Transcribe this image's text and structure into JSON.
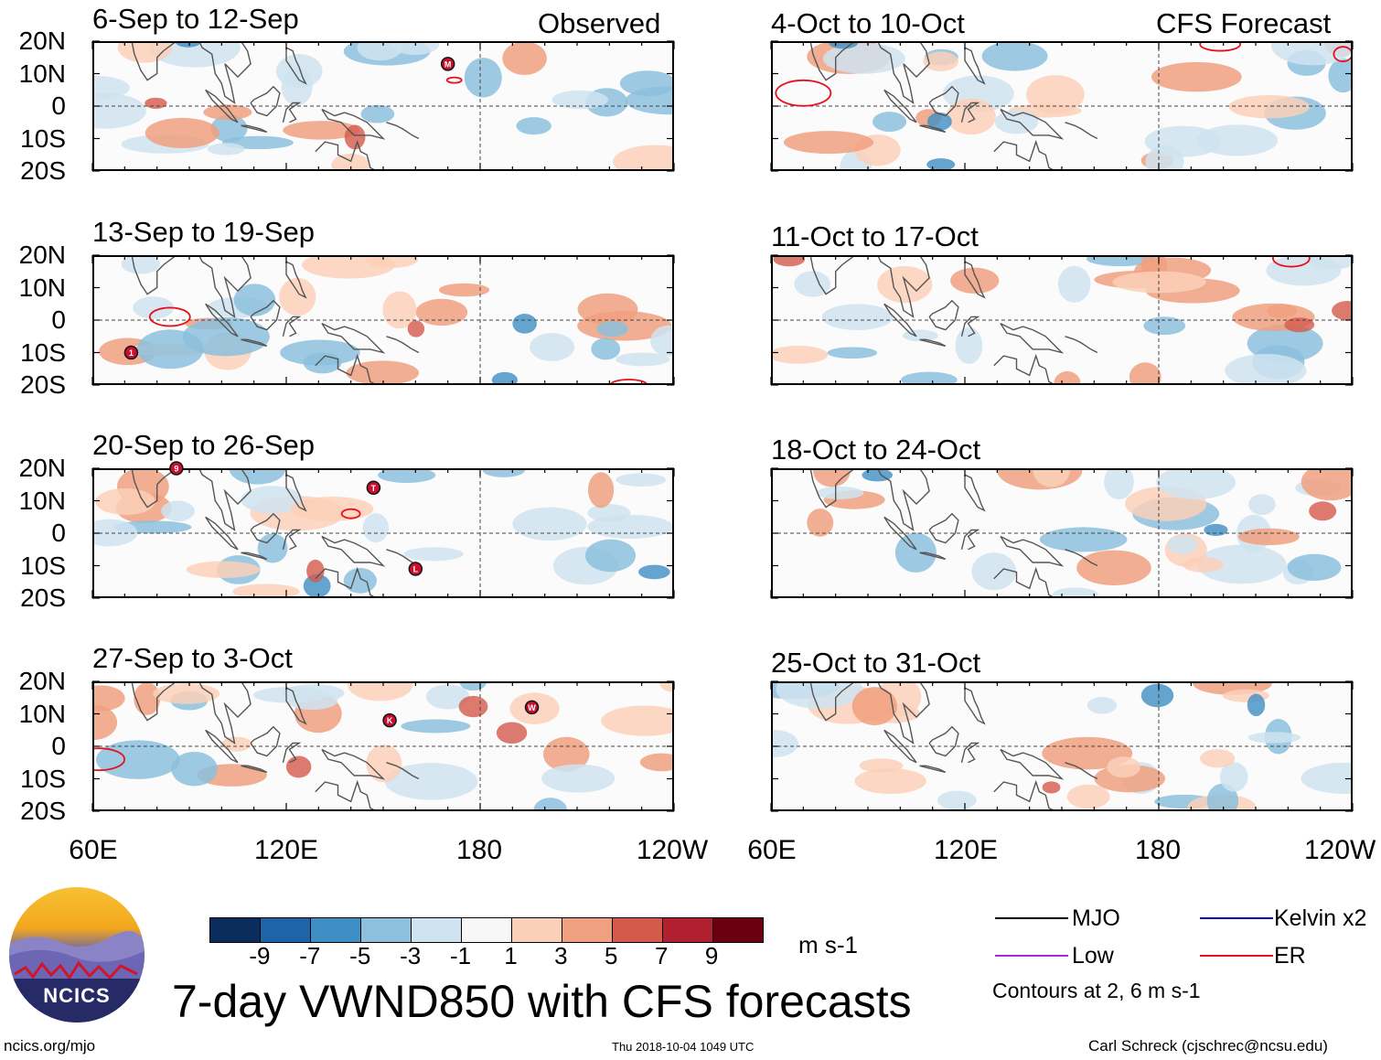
{
  "chart_data": {
    "type": "heatmap",
    "title": "7-day VWND850 with CFS forecasts",
    "units": "m s-1",
    "left_header": "Observed",
    "right_header": "CFS Forecast",
    "panels_observed": [
      {
        "period": "6-Sep to 12-Sep",
        "storms": [
          {
            "symbol": "M",
            "lon": 170,
            "lat": 13
          }
        ]
      },
      {
        "period": "13-Sep to 19-Sep",
        "storms": [
          {
            "symbol": "1",
            "lon": 72,
            "lat": -10
          }
        ]
      },
      {
        "period": "20-Sep to 26-Sep",
        "storms": [
          {
            "symbol": "9",
            "lon": 86,
            "lat": 20
          },
          {
            "symbol": "T",
            "lon": 147,
            "lat": 14
          },
          {
            "symbol": "L",
            "lon": 160,
            "lat": -11
          }
        ]
      },
      {
        "period": "27-Sep to 3-Oct",
        "storms": [
          {
            "symbol": "K",
            "lon": 152,
            "lat": 8
          },
          {
            "symbol": "W",
            "lon": 196,
            "lat": 12
          }
        ]
      }
    ],
    "panels_forecast": [
      {
        "period": "4-Oct to 10-Oct"
      },
      {
        "period": "11-Oct to 17-Oct"
      },
      {
        "period": "18-Oct to 24-Oct"
      },
      {
        "period": "25-Oct to 31-Oct"
      }
    ],
    "lat_ticks": [
      "20N",
      "10N",
      "0",
      "10S",
      "20S"
    ],
    "lon_ticks": [
      "60E",
      "120E",
      "180",
      "120W"
    ],
    "lat_range": [
      -20,
      20
    ],
    "lon_range": [
      60,
      240
    ],
    "colorbar": {
      "labels": [
        "-9",
        "-7",
        "-5",
        "-3",
        "-1",
        "1",
        "3",
        "5",
        "7",
        "9"
      ],
      "colors": [
        "#0b2d5e",
        "#1f63a8",
        "#3f8ec4",
        "#8cc0dd",
        "#cfe3f0",
        "#f7f7f7",
        "#fbd0b8",
        "#f0a07f",
        "#d45a4c",
        "#b0202e",
        "#6a0010"
      ]
    }
  },
  "legend": {
    "items": [
      {
        "label": "MJO",
        "color": "#000000"
      },
      {
        "label": "Kelvin x2",
        "color": "#0000cc"
      },
      {
        "label": "Low",
        "color": "#9b30d9"
      },
      {
        "label": "ER",
        "color": "#e8101a"
      }
    ],
    "contours_note": "Contours at 2, 6 m s-1"
  },
  "logo_text": "NCICS",
  "footer": {
    "left": "ncics.org/mjo",
    "center": "Thu 2018-10-04 1049 UTC",
    "right": "Carl Schreck (cjschrec@ncsu.edu)"
  }
}
